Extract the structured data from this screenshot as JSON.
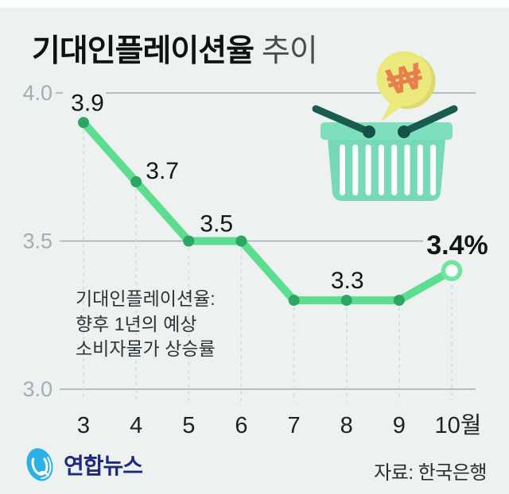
{
  "title": {
    "main": "기대인플레이션율",
    "suffix": "추이"
  },
  "chart_data": {
    "type": "line",
    "title": "기대인플레이션율 추이",
    "x_labels": [
      "3",
      "4",
      "5",
      "6",
      "7",
      "8",
      "9",
      "10월"
    ],
    "values": [
      3.9,
      3.7,
      3.5,
      3.5,
      3.3,
      3.3,
      3.3,
      3.4
    ],
    "unit": "%",
    "ylim": [
      3.0,
      4.0
    ],
    "y_ticks": [
      {
        "value": 4.0,
        "label": "4.0"
      },
      {
        "value": 3.5,
        "label": "3.5"
      },
      {
        "value": 3.0,
        "label": "3.0"
      }
    ],
    "point_labels": [
      {
        "index": 0,
        "text": "3.9",
        "bold": false
      },
      {
        "index": 1,
        "text": "3.7",
        "bold": false
      },
      {
        "index": 2,
        "text": "3.5",
        "bold": false
      },
      {
        "index": 5,
        "text": "3.3",
        "bold": false
      },
      {
        "index": 7,
        "text": "3.4%",
        "bold": true
      }
    ],
    "last_point_open": true,
    "grid": true,
    "legend": "none",
    "colors": {
      "line": "#5CDD90",
      "dot": "#2BA763",
      "open_ring": "#6FE5A0",
      "grid": "#A0AFB4",
      "dashed": "#CBDCDF",
      "point_label": "#121819",
      "axis_label": "#A0AEB3",
      "x_label": "#1B2424",
      "background": "#EDF1F0"
    }
  },
  "annotation": {
    "lines": [
      "기대인플레이션율:",
      "향후 1년의 예상",
      "소비자물가 상승률"
    ]
  },
  "illustration": {
    "won_symbol": "₩"
  },
  "footer": {
    "logo_text": "연합뉴스",
    "source": "자료: 한국은행"
  }
}
